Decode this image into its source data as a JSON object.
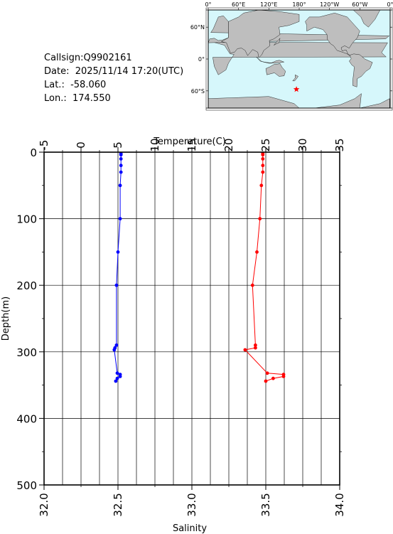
{
  "info": {
    "callsign": "Callsign:Q9902161",
    "date": "Date:  2025/11/14 17:20(UTC)",
    "lat": "Lat.:  -58.060",
    "lon": "Lon.:  174.550"
  },
  "map": {
    "top_labels": [
      "0°",
      "60°E",
      "120°E",
      "180°",
      "120°W",
      "60°W",
      "0°"
    ],
    "left_labels": [
      "60°N",
      "0°",
      "60°S"
    ],
    "ocean_color": "#d6f7fb",
    "land_color": "#bebebe",
    "marker_color": "#ff0000",
    "marker": {
      "lon": 174.55,
      "lat": -58.06
    }
  },
  "chart_data": {
    "type": "line",
    "title": "",
    "top_axis": {
      "label": "Temperature(C)",
      "range": [
        -5,
        35
      ],
      "ticks": [
        -5,
        0,
        5,
        10,
        15,
        20,
        25,
        30,
        35
      ]
    },
    "bottom_axis": {
      "label": "Salinity",
      "range": [
        32.0,
        34.0
      ],
      "ticks": [
        "32.0",
        "32.5",
        "33.0",
        "33.5",
        "34.0"
      ]
    },
    "y_axis": {
      "label": "Depth(m)",
      "range": [
        0,
        500
      ],
      "inverted": true,
      "ticks": [
        0,
        100,
        200,
        300,
        400,
        500
      ]
    },
    "grid": true,
    "series": [
      {
        "name": "Temperature",
        "axis": "top",
        "color": "#0000ff",
        "points": [
          {
            "depth": 2,
            "value": 5.4
          },
          {
            "depth": 4,
            "value": 5.4
          },
          {
            "depth": 10,
            "value": 5.4
          },
          {
            "depth": 20,
            "value": 5.4
          },
          {
            "depth": 30,
            "value": 5.4
          },
          {
            "depth": 50,
            "value": 5.3
          },
          {
            "depth": 100,
            "value": 5.3
          },
          {
            "depth": 150,
            "value": 5.0
          },
          {
            "depth": 200,
            "value": 4.8
          },
          {
            "depth": 290,
            "value": 4.8
          },
          {
            "depth": 294,
            "value": 4.6
          },
          {
            "depth": 297,
            "value": 4.5
          },
          {
            "depth": 332,
            "value": 4.9
          },
          {
            "depth": 334,
            "value": 5.3
          },
          {
            "depth": 337,
            "value": 5.3
          },
          {
            "depth": 340,
            "value": 4.9
          },
          {
            "depth": 344,
            "value": 4.7
          }
        ]
      },
      {
        "name": "Salinity",
        "axis": "bottom",
        "color": "#ff0000",
        "points": [
          {
            "depth": 2,
            "value": 33.48
          },
          {
            "depth": 4,
            "value": 33.48
          },
          {
            "depth": 10,
            "value": 33.48
          },
          {
            "depth": 20,
            "value": 33.48
          },
          {
            "depth": 30,
            "value": 33.48
          },
          {
            "depth": 50,
            "value": 33.47
          },
          {
            "depth": 100,
            "value": 33.46
          },
          {
            "depth": 150,
            "value": 33.44
          },
          {
            "depth": 200,
            "value": 33.41
          },
          {
            "depth": 290,
            "value": 33.43
          },
          {
            "depth": 294,
            "value": 33.43
          },
          {
            "depth": 297,
            "value": 33.36
          },
          {
            "depth": 332,
            "value": 33.51
          },
          {
            "depth": 334,
            "value": 33.62
          },
          {
            "depth": 337,
            "value": 33.62
          },
          {
            "depth": 340,
            "value": 33.55
          },
          {
            "depth": 344,
            "value": 33.5
          }
        ]
      }
    ]
  }
}
